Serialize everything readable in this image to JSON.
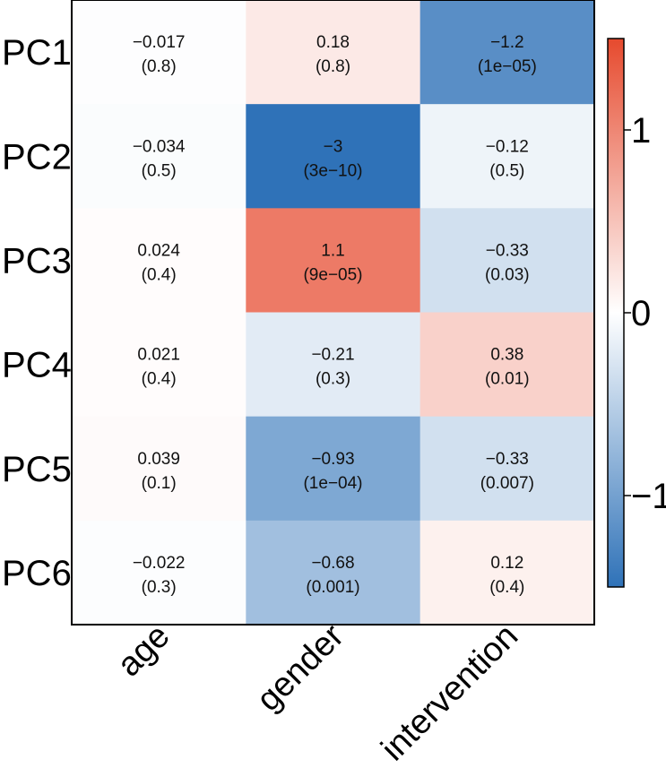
{
  "chart_data": {
    "type": "heatmap",
    "rows": [
      "PC1",
      "PC2",
      "PC3",
      "PC4",
      "PC5",
      "PC6"
    ],
    "columns": [
      "age",
      "gender",
      "intervention"
    ],
    "values": [
      [
        -0.017,
        0.18,
        -1.2
      ],
      [
        -0.034,
        -3,
        -0.12
      ],
      [
        0.024,
        1.1,
        -0.33
      ],
      [
        0.021,
        -0.21,
        0.38
      ],
      [
        0.039,
        -0.93,
        -0.33
      ],
      [
        -0.022,
        -0.68,
        0.12
      ]
    ],
    "value_labels": [
      [
        "−0.017",
        "0.18",
        "−1.2"
      ],
      [
        "−0.034",
        "−3",
        "−0.12"
      ],
      [
        "0.024",
        "1.1",
        "−0.33"
      ],
      [
        "0.021",
        "−0.21",
        "0.38"
      ],
      [
        "0.039",
        "−0.93",
        "−0.33"
      ],
      [
        "−0.022",
        "−0.68",
        "0.12"
      ]
    ],
    "p_labels": [
      [
        "(0.8)",
        "(0.8)",
        "(1e−05)"
      ],
      [
        "(0.5)",
        "(3e−10)",
        "(0.5)"
      ],
      [
        "(0.4)",
        "(9e−05)",
        "(0.03)"
      ],
      [
        "(0.4)",
        "(0.3)",
        "(0.01)"
      ],
      [
        "(0.1)",
        "(1e−04)",
        "(0.007)"
      ],
      [
        "(0.3)",
        "(0.001)",
        "(0.4)"
      ]
    ],
    "colorbar": {
      "range": [
        -1.5,
        1.5
      ],
      "ticks": [
        1,
        0,
        -1
      ],
      "tick_labels": [
        "1",
        "0",
        "−1"
      ],
      "low_color": "#2f72b8",
      "mid_color": "#ffffff",
      "high_color": "#e64a2e"
    }
  }
}
